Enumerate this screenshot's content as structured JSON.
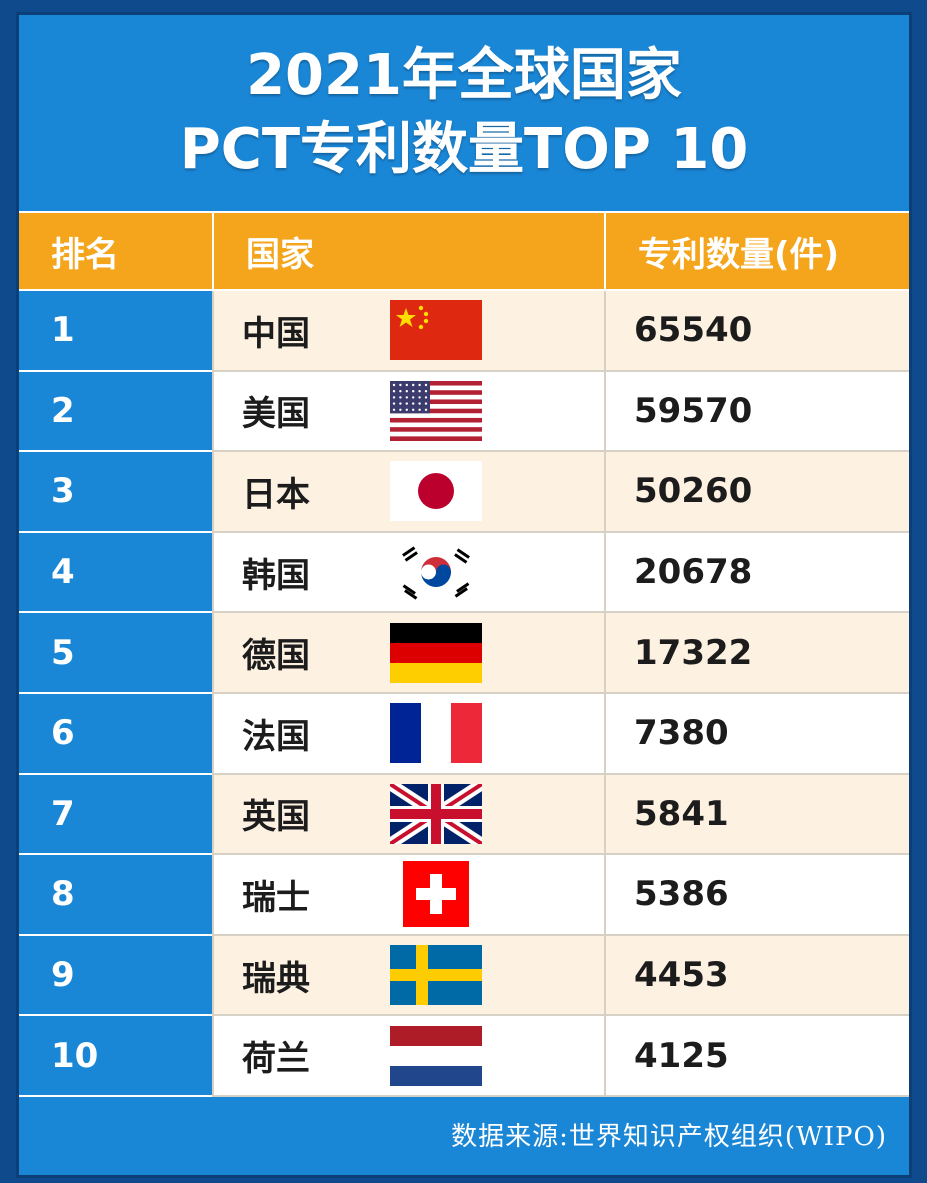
{
  "title": {
    "line1": "2021年全球国家",
    "line2": "PCT专利数量TOP 10"
  },
  "chart_data": {
    "type": "table",
    "columns": [
      "排名",
      "国家",
      "专利数量(件)"
    ],
    "rows": [
      {
        "rank": "1",
        "country": "中国",
        "flag": "china-flag-icon",
        "value": 65540
      },
      {
        "rank": "2",
        "country": "美国",
        "flag": "usa-flag-icon",
        "value": 59570
      },
      {
        "rank": "3",
        "country": "日本",
        "flag": "japan-flag-icon",
        "value": 50260
      },
      {
        "rank": "4",
        "country": "韩国",
        "flag": "korea-flag-icon",
        "value": 20678
      },
      {
        "rank": "5",
        "country": "德国",
        "flag": "germany-flag-icon",
        "value": 17322
      },
      {
        "rank": "6",
        "country": "法国",
        "flag": "france-flag-icon",
        "value": 7380
      },
      {
        "rank": "7",
        "country": "英国",
        "flag": "uk-flag-icon",
        "value": 5841
      },
      {
        "rank": "8",
        "country": "瑞士",
        "flag": "switzerland-flag-icon",
        "value": 5386
      },
      {
        "rank": "9",
        "country": "瑞典",
        "flag": "sweden-flag-icon",
        "value": 4453
      },
      {
        "rank": "10",
        "country": "荷兰",
        "flag": "netherlands-flag-icon",
        "value": 4125
      }
    ]
  },
  "footer": {
    "source": "数据来源:世界知识产权组织(WIPO)"
  },
  "colors": {
    "background": "#1a86d6",
    "header": "#f4a51c",
    "row_odd": "#fdf1e2",
    "row_even": "#ffffff"
  }
}
